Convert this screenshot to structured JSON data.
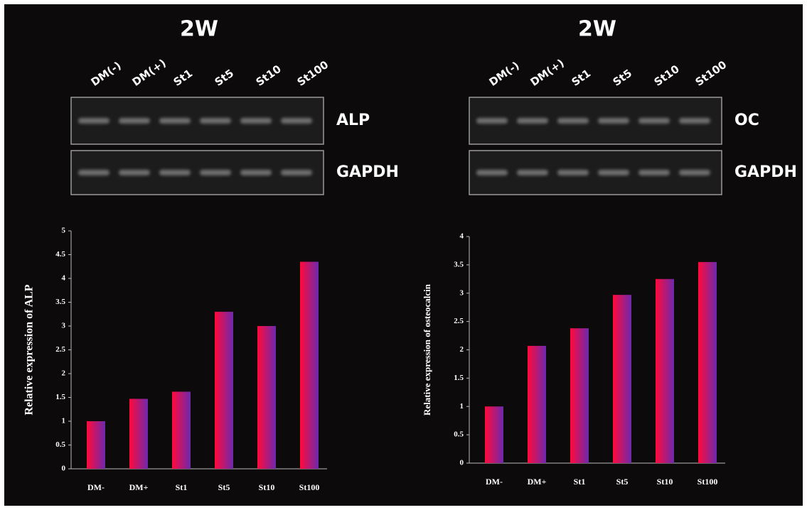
{
  "gels": [
    {
      "title": "2W",
      "lanes": [
        "DM(-)",
        "DM(+)",
        "St1",
        "St5",
        "St10",
        "St100"
      ],
      "bands": [
        "ALP",
        "GAPDH"
      ]
    },
    {
      "title": "2W",
      "lanes": [
        "DM(-)",
        "DM(+)",
        "St1",
        "St5",
        "St10",
        "St100"
      ],
      "bands": [
        "OC",
        "GAPDH"
      ]
    }
  ],
  "chart_data": [
    {
      "type": "bar",
      "y_label": "Relative expression of ALP",
      "categories": [
        "DM-",
        "DM+",
        "St1",
        "St5",
        "St10",
        "St100"
      ],
      "values": [
        1.0,
        1.47,
        1.62,
        3.3,
        3.0,
        4.35
      ],
      "color": [
        "#ff0a3c",
        "#6a2ab0"
      ],
      "ylim": [
        0,
        5
      ],
      "yticks": [
        0,
        0.5,
        1,
        1.5,
        2,
        2.5,
        3,
        3.5,
        4,
        4.5,
        5
      ]
    },
    {
      "type": "bar",
      "y_label": "Relative expression of osteocalcin",
      "categories": [
        "DM-",
        "DM+",
        "St1",
        "St5",
        "St10",
        "St100"
      ],
      "values": [
        1.0,
        2.07,
        2.38,
        2.97,
        3.25,
        3.55
      ],
      "color": [
        "#ff0a3c",
        "#6a2ab0"
      ],
      "ylim": [
        0,
        4
      ],
      "yticks": [
        0,
        0.5,
        1,
        1.5,
        2,
        2.5,
        3,
        3.5,
        4
      ]
    }
  ]
}
